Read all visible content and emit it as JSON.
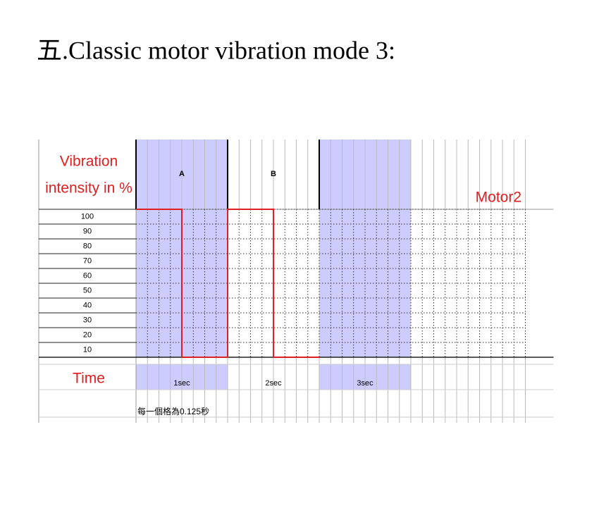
{
  "title": "五.Classic motor vibration mode 3:",
  "chart_data": {
    "type": "line",
    "step": true,
    "y_label": [
      "Vibration",
      "intensity in  %"
    ],
    "x_label": "Time",
    "section_labels": [
      "A",
      "B"
    ],
    "x": [
      0,
      0.5,
      0.5,
      1,
      1,
      1.5,
      1.5,
      2
    ],
    "series": [
      {
        "name": "Motor2",
        "color": "#e02020",
        "values": [
          100,
          100,
          0,
          0,
          100,
          100,
          0,
          0
        ]
      }
    ],
    "xlim": [
      0,
      4.25
    ],
    "xticks": [
      {
        "value": 1,
        "label": "1sec"
      },
      {
        "value": 2,
        "label": "2sec"
      },
      {
        "value": 3,
        "label": "3sec"
      }
    ],
    "x_grid_step": 0.125,
    "ylim": [
      0,
      100
    ],
    "yticks": [
      10,
      20,
      30,
      40,
      50,
      60,
      70,
      80,
      90,
      100
    ],
    "shade_color": "#ccccff",
    "grid": true,
    "note": "每一個格為0.125秒"
  }
}
